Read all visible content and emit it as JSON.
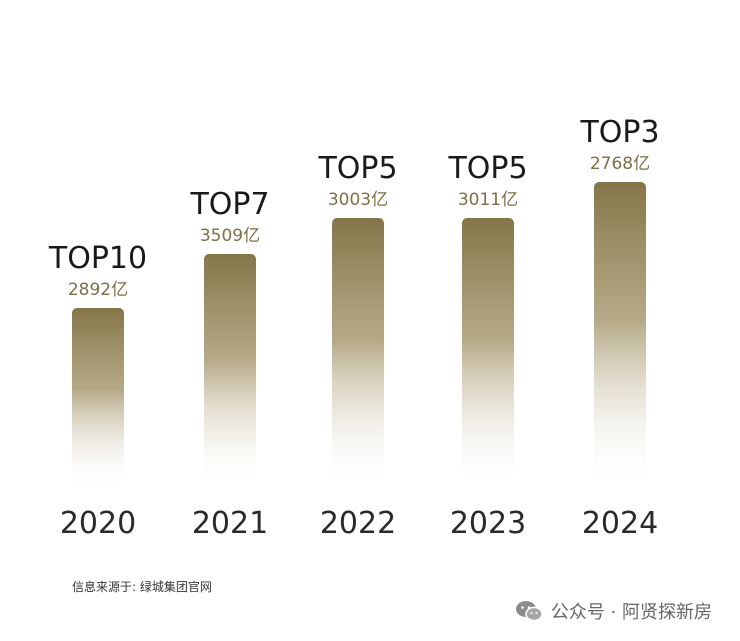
{
  "chart_data": {
    "type": "bar",
    "categories": [
      "2020",
      "2021",
      "2022",
      "2023",
      "2024"
    ],
    "values": [
      2892,
      3509,
      3003,
      3011,
      2768
    ],
    "value_labels": [
      "2892亿",
      "3509亿",
      "3003亿",
      "3011亿",
      "2768亿"
    ],
    "rank_labels": [
      "TOP10",
      "TOP7",
      "TOP5",
      "TOP5",
      "TOP3"
    ],
    "ranks": [
      10,
      7,
      5,
      5,
      3
    ],
    "bar_color": "#8a7b52",
    "title": "",
    "xlabel": "",
    "ylabel": ""
  },
  "footer": {
    "source_note": "信息来源于: 绿城集团官网",
    "watermark_text": "公众号 · 阿贤探新房",
    "watermark_icon": "wechat-icon"
  },
  "colors": {
    "bar_top": "#857649",
    "value_text": "#7c7047"
  }
}
